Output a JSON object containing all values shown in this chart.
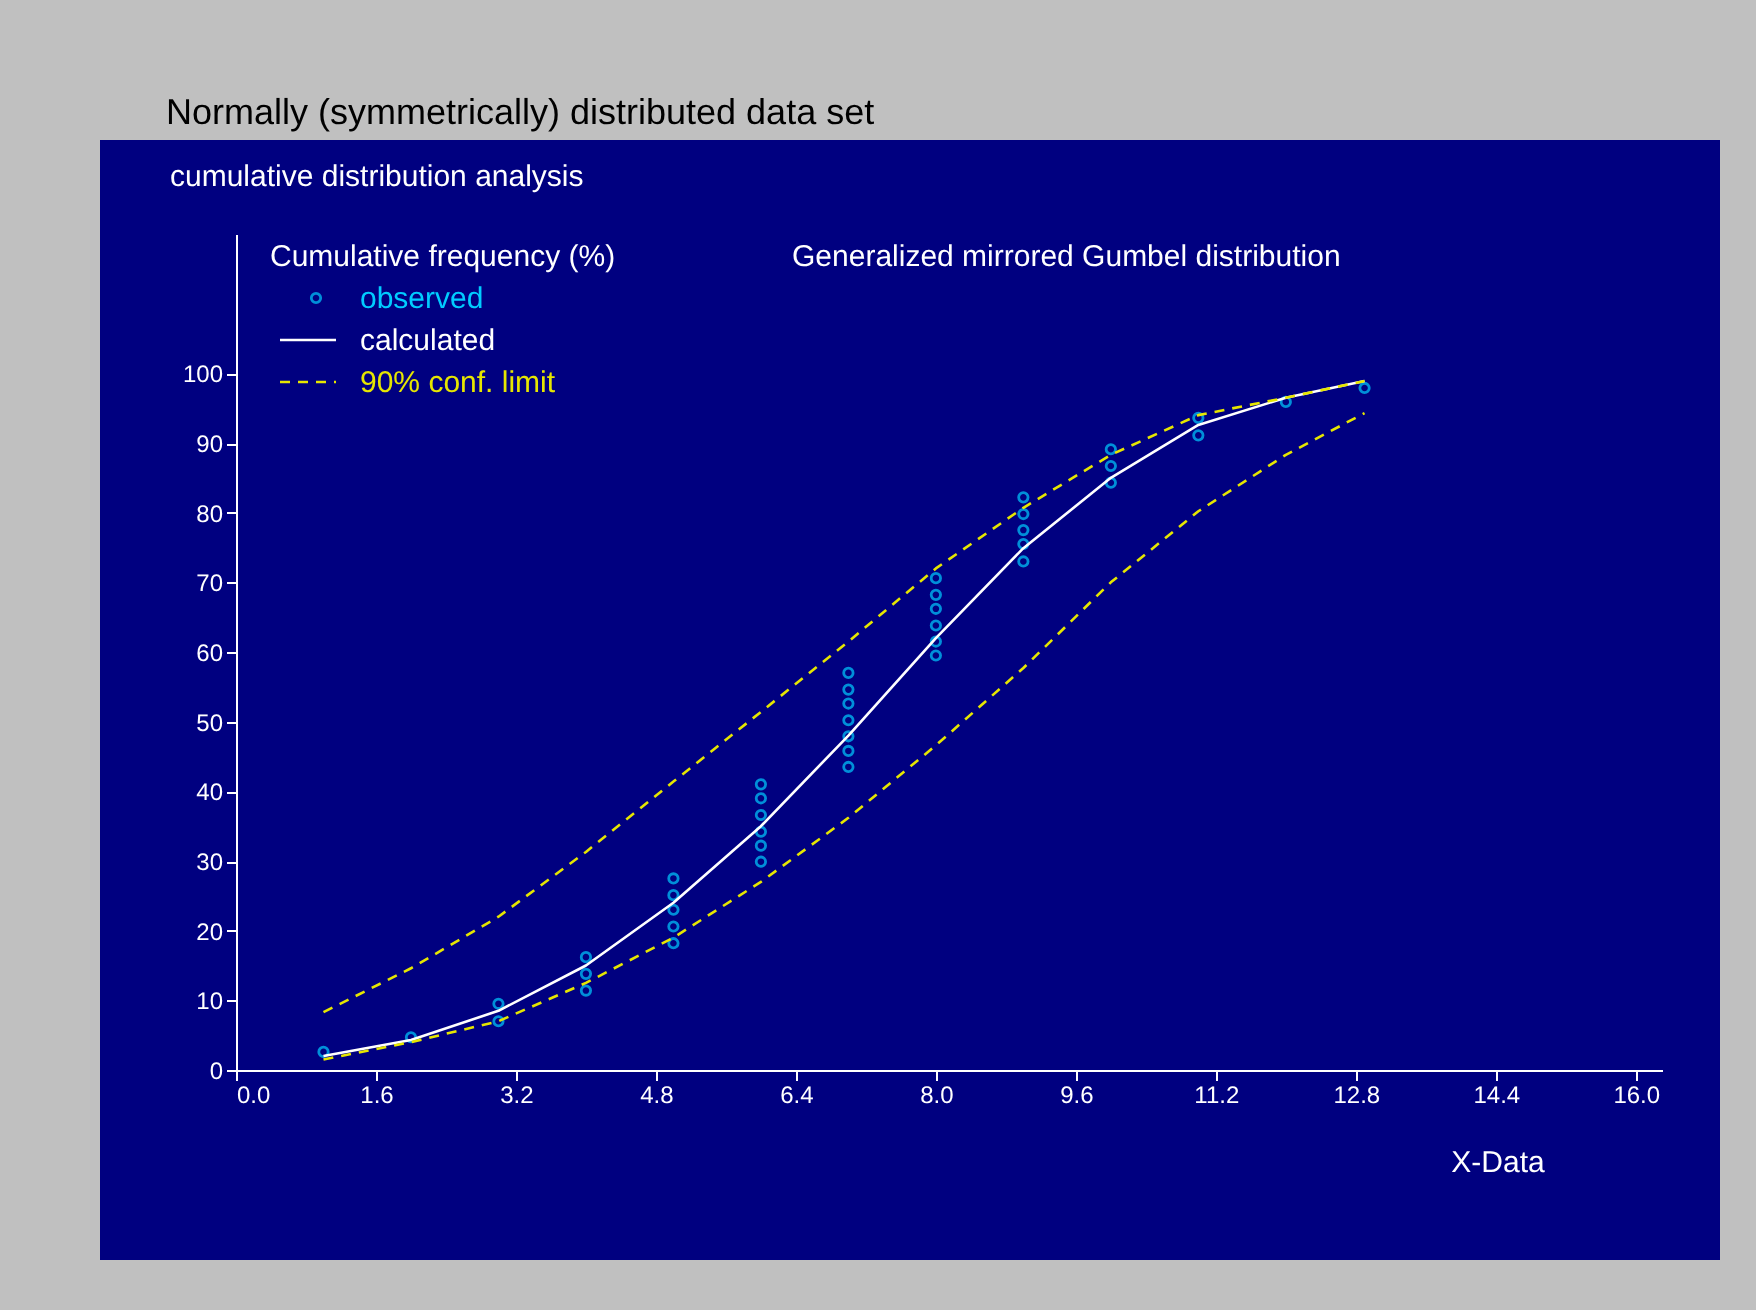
{
  "chart_data": {
    "type": "line",
    "title": "Normally (symmetrically) distributed data set",
    "subtitle": "cumulative distribution analysis",
    "ylabel": "Cumulative frequency (%)",
    "xlabel": "X-Data",
    "annotations": [
      "Generalized mirrored Gumbel distribution"
    ],
    "xlim": [
      0,
      16.3
    ],
    "ylim": [
      0,
      120
    ],
    "xticks": [
      {
        "value": 0,
        "label": "0.0"
      },
      1.6,
      3.2,
      4.8,
      6.4,
      {
        "value": 8,
        "label": "8.0"
      },
      9.6,
      11.2,
      12.8,
      14.4,
      {
        "value": 16,
        "label": "16.0"
      }
    ],
    "yticks": [
      0,
      10,
      20,
      30,
      40,
      50,
      60,
      70,
      80,
      90,
      100
    ],
    "legend": "top left",
    "series": [
      {
        "name": "observed",
        "type": "scatter",
        "marker": "circle",
        "color": "#00ccff",
        "x": [
          1,
          2,
          3,
          3,
          4,
          4,
          4,
          5,
          5,
          5,
          5,
          5,
          6,
          6,
          6,
          6,
          6,
          6,
          7,
          7,
          7,
          7,
          7,
          7,
          7,
          8,
          8,
          8,
          8,
          8,
          8,
          9,
          9,
          9,
          9,
          9,
          10,
          10,
          10,
          11,
          11,
          12,
          12.9
        ],
        "values": [
          2.6,
          4.7,
          9.5,
          7,
          16.2,
          13.8,
          11.4,
          27.5,
          25.1,
          23,
          20.6,
          18.2,
          41,
          39,
          36.6,
          34.2,
          32.2,
          29.9,
          57,
          54.6,
          52.6,
          50.2,
          47.9,
          45.8,
          43.5,
          70.6,
          68.2,
          66.2,
          63.8,
          61.5,
          59.5,
          82.2,
          79.8,
          77.5,
          75.5,
          73,
          89.1,
          86.7,
          84.3,
          93.6,
          91.1,
          95.9,
          97.9
        ]
      },
      {
        "name": "calculated",
        "type": "line",
        "line_style": "solid",
        "color": "#ffffff",
        "x": [
          1,
          2,
          3,
          4,
          5,
          6,
          7,
          8,
          9,
          10,
          11,
          12,
          12.9
        ],
        "values": [
          2,
          4.3,
          8.5,
          15,
          24,
          35,
          48,
          62,
          74.9,
          85,
          92.6,
          96.5,
          98.9
        ]
      },
      {
        "name": "90% conf. limit",
        "type": "line",
        "line_style": "dashed",
        "color": "#e6e600",
        "x": [
          1,
          2,
          3,
          4,
          5,
          6,
          7,
          8,
          9,
          10,
          11,
          12,
          12.9
        ],
        "values": [
          8.3,
          14.6,
          22,
          31.3,
          41.4,
          51.4,
          61.5,
          72,
          80.7,
          88.3,
          94,
          96.5,
          98.9
        ]
      },
      {
        "type": "line",
        "line_style": "dashed",
        "color": "#e6e600",
        "x": [
          1,
          2,
          3,
          4,
          5,
          6,
          7,
          8,
          9,
          10,
          11,
          12,
          12.9
        ],
        "values": [
          1.5,
          4,
          7,
          12.5,
          19,
          27,
          36.2,
          46.6,
          57.7,
          70,
          80.2,
          88.3,
          94.3
        ]
      }
    ]
  }
}
